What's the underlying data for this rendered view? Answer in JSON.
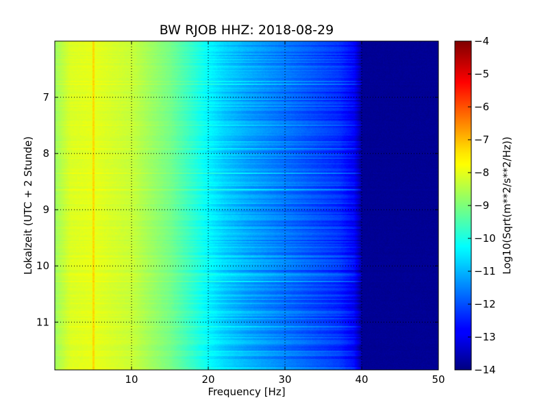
{
  "chart_data": {
    "type": "heatmap",
    "title": "BW RJOB HHZ: 2018-08-29",
    "xlabel": "Frequency [Hz]",
    "ylabel": "Lokalzeit (UTC + 2 Stunde)",
    "xlim": [
      0,
      50
    ],
    "ylim": [
      11.85,
      6.0
    ],
    "y_inverted": true,
    "grid": true,
    "x_ticks": [
      10,
      20,
      30,
      40,
      50
    ],
    "x_tick_labels": [
      "10",
      "20",
      "30",
      "40",
      "50"
    ],
    "y_ticks": [
      7,
      8,
      9,
      10,
      11
    ],
    "y_tick_labels": [
      "7",
      "8",
      "9",
      "10",
      "11"
    ],
    "colormap": "jet",
    "colorbar": {
      "label": "Log10(Sqrt(m**2/s**2/Hz))",
      "range": [
        -14,
        -4
      ],
      "ticks": [
        -4,
        -5,
        -6,
        -7,
        -8,
        -9,
        -10,
        -11,
        -12,
        -13,
        -14
      ],
      "tick_labels": [
        "−4",
        "−5",
        "−6",
        "−7",
        "−8",
        "−9",
        "−10",
        "−11",
        "−12",
        "−13",
        "−14"
      ]
    },
    "spectral_profile": {
      "frequency_hz": [
        0,
        2,
        5,
        10,
        15,
        18,
        20,
        22,
        25,
        28,
        30,
        33,
        35,
        37,
        39,
        40,
        50
      ],
      "log10_amplitude": [
        -8.7,
        -8.1,
        -8.0,
        -8.3,
        -9.1,
        -9.8,
        -10.3,
        -10.7,
        -11.1,
        -11.4,
        -11.6,
        -11.9,
        -12.1,
        -12.3,
        -12.8,
        -13.8,
        -13.8
      ]
    }
  }
}
